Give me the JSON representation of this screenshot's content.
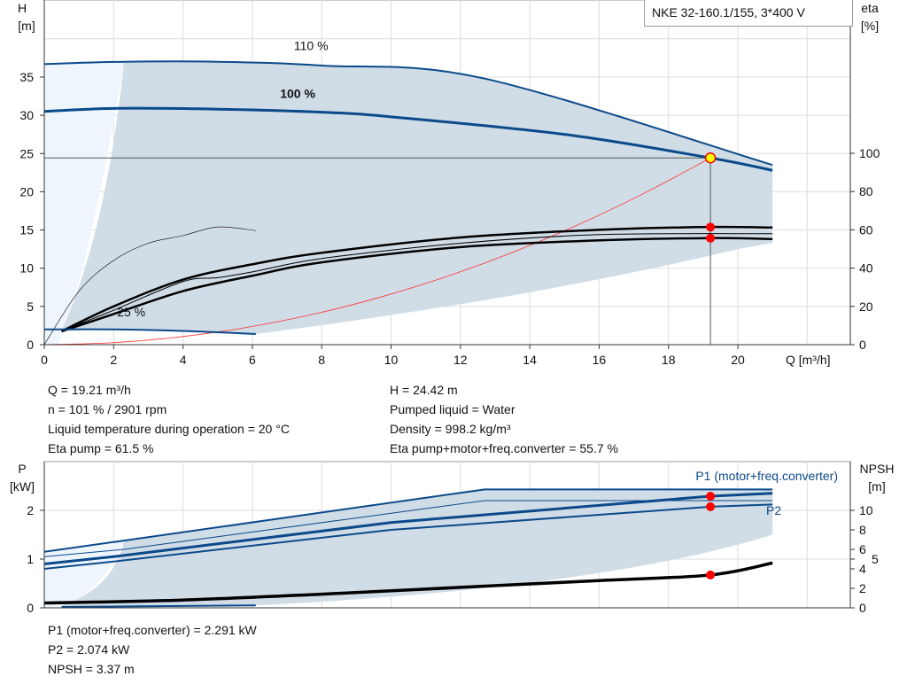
{
  "title": "NKE 32-160.1/155, 3*400 V",
  "colors": {
    "curve": "#0b4a8a",
    "shade": "#d0dce6",
    "shade_light": "#eef5fc",
    "op_point": "#ff0000",
    "system": "#ff3030"
  },
  "chart_data": [
    {
      "type": "line",
      "ylabel_left": "H",
      "yunit_left": "[m]",
      "ylabel_right": "eta",
      "yunit_right": "[%]",
      "xlabel": "Q [m³/h]",
      "xlim": [
        0,
        23
      ],
      "ylim": [
        0,
        40
      ],
      "eta_lim": [
        0,
        160
      ],
      "grid": true,
      "xticks": [
        "0",
        "2",
        "4",
        "6",
        "8",
        "10",
        "12",
        "14",
        "16",
        "18",
        "20"
      ],
      "yticks": [
        "0",
        "5",
        "10",
        "15",
        "20",
        "25",
        "30",
        "35"
      ],
      "eta_ticks": [
        "0",
        "20",
        "40",
        "60",
        "80",
        "100"
      ],
      "speed_labels": [
        {
          "text": "110 %",
          "q": 7.2,
          "h": 38.5
        },
        {
          "text": "100 %",
          "q": 6.8,
          "h": 32.3
        },
        {
          "text": "25 %",
          "q": 2.1,
          "h": 3.7
        }
      ],
      "head_curves": [
        {
          "name": "110 %",
          "points": [
            [
              0,
              36.7
            ],
            [
              2.3,
              37
            ],
            [
              5,
              37
            ],
            [
              8,
              36.5
            ],
            [
              12.7,
              34.8
            ],
            [
              21,
              23.5
            ]
          ]
        },
        {
          "name": "100 %",
          "points": [
            [
              0,
              30.5
            ],
            [
              2,
              30.9
            ],
            [
              5,
              30.8
            ],
            [
              8,
              30.4
            ],
            [
              10,
              29.8
            ],
            [
              15,
              27.5
            ],
            [
              19.21,
              24.42
            ],
            [
              21,
              22.8
            ]
          ]
        },
        {
          "name": "25 %",
          "points": [
            [
              0,
              2.0
            ],
            [
              2,
              2.0
            ],
            [
              4,
              1.8
            ],
            [
              6.1,
              1.4
            ]
          ]
        }
      ],
      "eta_curves": [
        {
          "points": [
            [
              0.5,
              7
            ],
            [
              2,
              20
            ],
            [
              4,
              34
            ],
            [
              6,
              42
            ],
            [
              8,
              48
            ],
            [
              12,
              56
            ],
            [
              16,
              60
            ],
            [
              19.21,
              61.5
            ],
            [
              21,
              61.2
            ]
          ]
        },
        {
          "points": [
            [
              0.5,
              7
            ],
            [
              2,
              16
            ],
            [
              4,
              28
            ],
            [
              6,
              36
            ],
            [
              8,
              43
            ],
            [
              12,
              51
            ],
            [
              16,
              54.5
            ],
            [
              19.21,
              55.7
            ],
            [
              21,
              55.2
            ]
          ]
        },
        {
          "points": [
            [
              0.5,
              7
            ],
            [
              2,
              18
            ],
            [
              4,
              33
            ],
            [
              5,
              35
            ],
            [
              6,
              38
            ],
            [
              8,
              45
            ],
            [
              12,
              53
            ],
            [
              16,
              57.5
            ],
            [
              21,
              58
            ]
          ]
        },
        {
          "points": [
            [
              0,
              0
            ],
            [
              1,
              28
            ],
            [
              2,
              44
            ],
            [
              3,
              53
            ],
            [
              4,
              57
            ],
            [
              5,
              61.5
            ],
            [
              6.1,
              59.6
            ]
          ]
        }
      ],
      "system_curve": {
        "points": [
          [
            0,
            0
          ],
          [
            19.21,
            24.42
          ]
        ]
      },
      "operating_point": {
        "q": 19.21,
        "h": 24.42,
        "eta_pump": 61.5,
        "eta_total": 55.7
      }
    },
    {
      "type": "line",
      "ylabel_left": "P",
      "yunit_left": "[kW]",
      "ylabel_right": "NPSH",
      "yunit_right": "[m]",
      "xlim": [
        0,
        23
      ],
      "ylim": [
        0,
        3
      ],
      "npsh_lim": [
        0,
        15
      ],
      "grid": true,
      "yticks": [
        "0",
        "1",
        "2"
      ],
      "npsh_ticks": [
        "0",
        "2",
        "4",
        "5",
        "6",
        "8",
        "10"
      ],
      "series": [
        {
          "name": "P1 (motor+freq.converter)",
          "points": [
            [
              0,
              0.9
            ],
            [
              2,
              1.05
            ],
            [
              10,
              1.75
            ],
            [
              19.21,
              2.291
            ],
            [
              21,
              2.35
            ]
          ]
        },
        {
          "name": "P2",
          "points": [
            [
              0,
              0.8
            ],
            [
              2,
              0.95
            ],
            [
              10,
              1.6
            ],
            [
              19.21,
              2.074
            ],
            [
              21,
              2.12
            ]
          ]
        },
        {
          "points": [
            [
              0,
              1.15
            ],
            [
              2.3,
              1.38
            ],
            [
              12.7,
              2.43
            ],
            [
              21,
              2.43
            ]
          ]
        },
        {
          "points": [
            [
              0,
              1.05
            ],
            [
              2.3,
              1.2
            ],
            [
              12.7,
              2.2
            ],
            [
              21,
              2.2
            ]
          ]
        }
      ],
      "npsh": {
        "points": [
          [
            0,
            0.5
          ],
          [
            4,
            0.8
          ],
          [
            8,
            1.4
          ],
          [
            12,
            2.1
          ],
          [
            16,
            2.8
          ],
          [
            19.21,
            3.37
          ],
          [
            21,
            4.6
          ]
        ]
      },
      "operating_point": {
        "q": 19.21,
        "p1": 2.291,
        "p2": 2.074,
        "npsh": 3.37
      }
    }
  ],
  "results": {
    "q": "Q = 19.21 m³/h",
    "h": "H = 24.42 m",
    "n": "n = 101 % / 2901 rpm",
    "liquid": "Pumped liquid = Water",
    "temp": "Liquid temperature during operation = 20 °C",
    "density": "Density = 998.2 kg/m³",
    "eta_pump": "Eta pump = 61.5 %",
    "eta_total": "Eta pump+motor+freq.converter = 55.7 %",
    "p1": "P1 (motor+freq.converter) = 2.291 kW",
    "p2": "P2 = 2.074 kW",
    "npsh": "NPSH = 3.37 m"
  }
}
